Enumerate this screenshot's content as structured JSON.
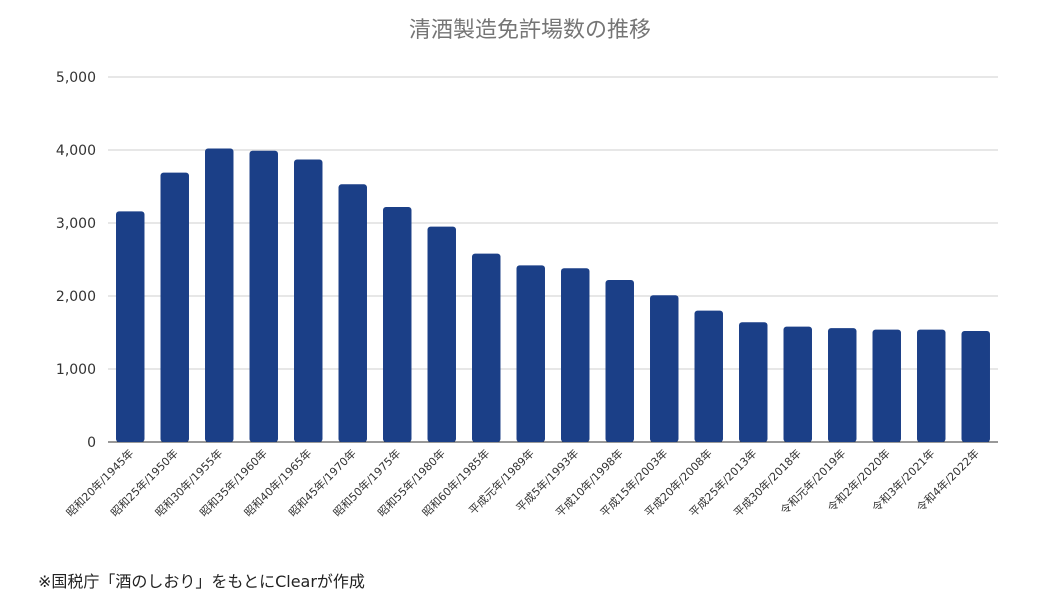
{
  "chart_data": {
    "type": "bar",
    "title": "清酒製造免許場数の推移",
    "xlabel": "",
    "ylabel": "",
    "ylim": [
      0,
      5000
    ],
    "yticks": [
      "0",
      "1,000",
      "2,000",
      "3,000",
      "4,000",
      "5,000"
    ],
    "ytick_values": [
      0,
      1000,
      2000,
      3000,
      4000,
      5000
    ],
    "grid": true,
    "legend": "none",
    "bar_color": "#1b3f87",
    "categories": [
      "昭和20年/1945年",
      "昭和25年/1950年",
      "昭和30年/1955年",
      "昭和35年/1960年",
      "昭和40年/1965年",
      "昭和45年/1970年",
      "昭和50年/1975年",
      "昭和55年/1980年",
      "昭和60年/1985年",
      "平成元年/1989年",
      "平成5年/1993年",
      "平成10年/1998年",
      "平成15年/2003年",
      "平成20年/2008年",
      "平成25年/2013年",
      "平成30年/2018年",
      "令和元年/2019年",
      "令和2年/2020年",
      "令和3年/2021年",
      "令和4年/2022年"
    ],
    "values": [
      3160,
      3690,
      4020,
      3990,
      3870,
      3530,
      3220,
      2950,
      2580,
      2420,
      2380,
      2220,
      2010,
      1800,
      1640,
      1580,
      1560,
      1540,
      1540,
      1520
    ]
  },
  "footer": {
    "source": "※国税庁「酒のしおり」をもとにClearが作成"
  }
}
